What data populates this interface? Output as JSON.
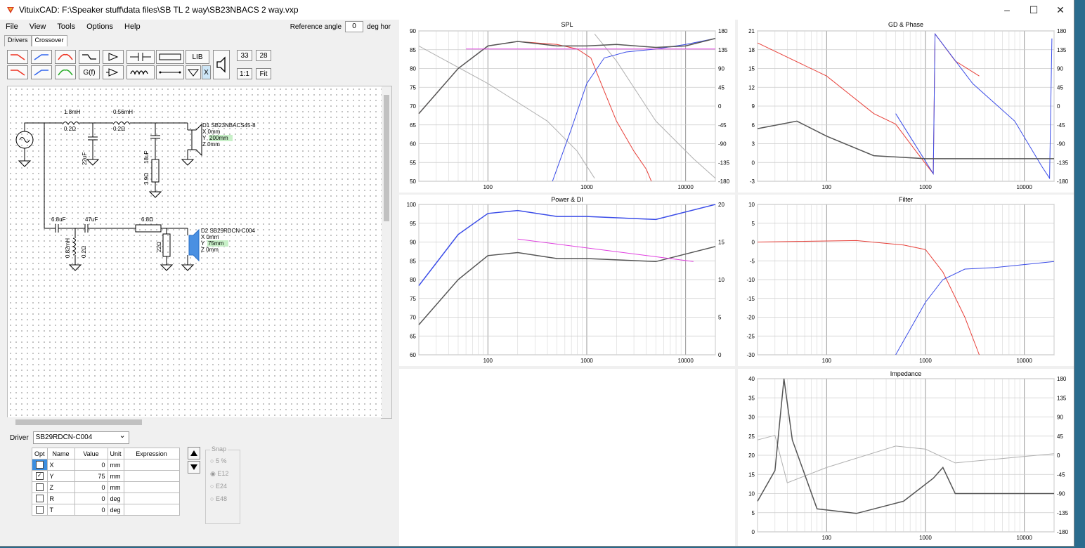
{
  "window": {
    "title": "VituixCAD: F:\\Speaker stuff\\data files\\SB TL 2 way\\SB23NBACS 2 way.vxp",
    "minimize": "–",
    "maximize": "☐",
    "close": "✕"
  },
  "menu": {
    "file": "File",
    "view": "View",
    "tools": "Tools",
    "options": "Options",
    "help": "Help"
  },
  "reference": {
    "label": "Reference angle",
    "value": "0",
    "unit": "deg hor"
  },
  "tabs": {
    "drivers": "Drivers",
    "crossover": "Crossover"
  },
  "toolbar": {
    "lib": "LIB",
    "gf": "G(f)",
    "x": "X",
    "n1": "33",
    "n2": "28",
    "scale": "1:1",
    "fit": "Fit"
  },
  "schematic": {
    "l1": "1.8mH",
    "l1r": "0.2Ω",
    "l2": "0.56mH",
    "l2r": "0.2Ω",
    "c1": "22uF",
    "c2": "18uF",
    "r1": "3.9Ω",
    "d1": {
      "name": "D1 SB23NBACS45-8",
      "x": "X 0mm",
      "y": "200mm",
      "z": "Z 0mm"
    },
    "c3": "6.8uF",
    "c4": "47uF",
    "r2": "6.8Ω",
    "l3": "0.82mH",
    "l3r": "0.2Ω",
    "r3": "22Ω",
    "d2": {
      "name": "D2 SB29RDCN-C004",
      "x": "X 0mm",
      "y": "75mm",
      "z": "Z 0mm"
    },
    "y_prefix": "Y "
  },
  "driver": {
    "label": "Driver",
    "selected": "SB29RDCN-C004"
  },
  "opt_table": {
    "headers": [
      "Opt",
      "Name",
      "Value",
      "Unit",
      "Expression"
    ],
    "rows": [
      {
        "name": "X",
        "value": "0",
        "unit": "mm",
        "checked": ""
      },
      {
        "name": "Y",
        "value": "75",
        "unit": "mm",
        "checked": "✓"
      },
      {
        "name": "Z",
        "value": "0",
        "unit": "mm",
        "checked": ""
      },
      {
        "name": "R",
        "value": "0",
        "unit": "deg",
        "checked": ""
      },
      {
        "name": "T",
        "value": "0",
        "unit": "deg",
        "checked": ""
      }
    ]
  },
  "snap": {
    "label": "Snap",
    "options": [
      "5 %",
      "E12",
      "E24",
      "E48"
    ]
  },
  "charts": {
    "spl": {
      "title": "SPL",
      "yl": [
        "90",
        "85",
        "80",
        "75",
        "70",
        "65",
        "60",
        "55",
        "50"
      ],
      "yr": [
        "180",
        "135",
        "90",
        "45",
        "0",
        "-45",
        "-90",
        "-135",
        "-180"
      ],
      "x": [
        "100",
        "1000",
        "10000"
      ]
    },
    "gd": {
      "title": "GD & Phase",
      "yl": [
        "21",
        "18",
        "15",
        "12",
        "9",
        "6",
        "3",
        "0",
        "-3"
      ],
      "yr": [
        "180",
        "135",
        "90",
        "45",
        "0",
        "-45",
        "-90",
        "-135",
        "-180"
      ],
      "x": [
        "100",
        "1000",
        "10000"
      ]
    },
    "power": {
      "title": "Power & DI",
      "yl": [
        "100",
        "95",
        "90",
        "85",
        "80",
        "75",
        "70",
        "65",
        "60"
      ],
      "yr": [
        "20",
        "15",
        "10",
        "5",
        "0"
      ],
      "x": [
        "100",
        "1000",
        "10000"
      ]
    },
    "filter": {
      "title": "Filter",
      "yl": [
        "10",
        "5",
        "0",
        "-5",
        "-10",
        "-15",
        "-20",
        "-25",
        "-30"
      ],
      "x": [
        "100",
        "1000",
        "10000"
      ]
    },
    "imp": {
      "title": "Impedance",
      "yl": [
        "40",
        "35",
        "30",
        "25",
        "20",
        "15",
        "10",
        "5",
        "0"
      ],
      "yr": [
        "180",
        "135",
        "90",
        "45",
        "0",
        "-45",
        "-90",
        "-135",
        "-180"
      ],
      "x": [
        "100",
        "1000",
        "10000"
      ]
    }
  },
  "colors": {
    "woofer": "#e8413a",
    "tweeter": "#3a4ce8",
    "sum": "#555555",
    "target": "#e040e0",
    "offaxis": "#b0b0b0"
  }
}
